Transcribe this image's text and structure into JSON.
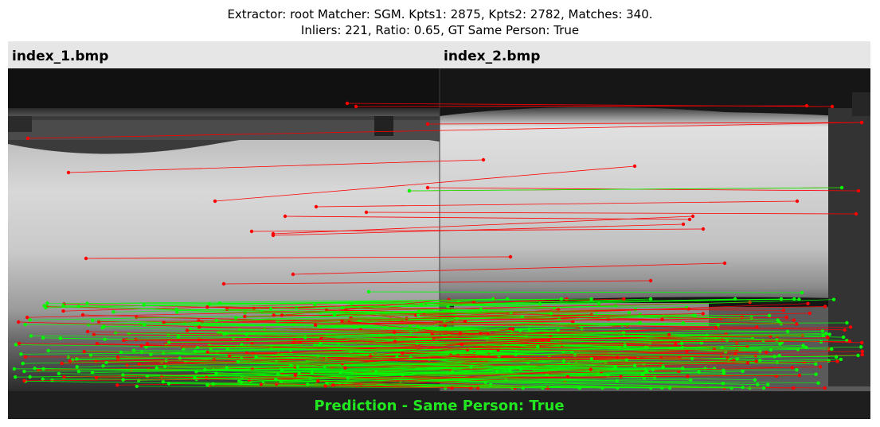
{
  "title": {
    "line1": "Extractor:  root Matcher: SGM. Kpts1: 2875, Kpts2: 2782, Matches: 340.",
    "line2": "Inliers: 221, Ratio: 0.65, GT Same Person: True"
  },
  "images": {
    "left_label": "index_1.bmp",
    "right_label": "index_2.bmp"
  },
  "prediction": "Prediction - Same Person: True",
  "colors": {
    "inlier": "#00ff00",
    "outlier": "#ff0000"
  },
  "stats": {
    "kpts1": 2875,
    "kpts2": 2782,
    "matches": 340,
    "inliers": 221,
    "ratio": 0.65,
    "gt_same_person": true
  }
}
